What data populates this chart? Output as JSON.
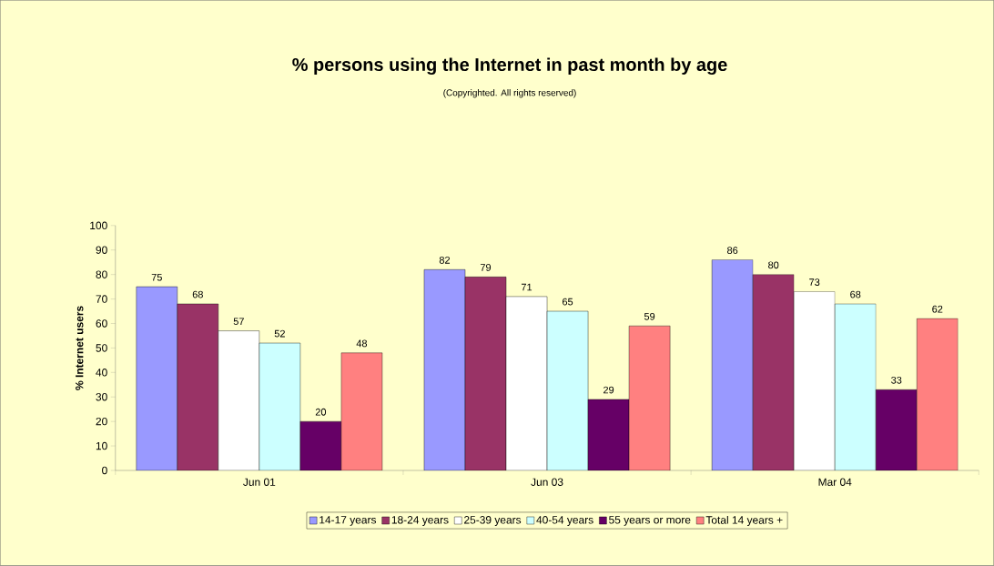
{
  "chart_data": {
    "type": "bar",
    "title": "% persons using the Internet in past month by age",
    "subtitle": "(Copyrighted. All rights reserved)",
    "ylabel": "% Internet users",
    "categories": [
      "Jun 01",
      "Jun 03",
      "Mar 04"
    ],
    "series": [
      {
        "name": "14-17 years",
        "color": "#9999ff",
        "values": [
          75,
          82,
          86
        ]
      },
      {
        "name": "18-24 years",
        "color": "#993366",
        "values": [
          68,
          79,
          80
        ]
      },
      {
        "name": "25-39 years",
        "color": "#ffffff",
        "values": [
          57,
          71,
          73
        ]
      },
      {
        "name": "40-54 years",
        "color": "#ccffff",
        "values": [
          52,
          65,
          68
        ]
      },
      {
        "name": "55 years or more",
        "color": "#660066",
        "values": [
          20,
          29,
          33
        ]
      },
      {
        "name": "Total 14 years +",
        "color": "#ff8080",
        "values": [
          48,
          59,
          62
        ]
      }
    ],
    "ylim": [
      0,
      100
    ],
    "yticks": [
      0,
      10,
      20,
      30,
      40,
      50,
      60,
      70,
      80,
      90,
      100
    ],
    "data_labels": true,
    "legend": "bottom",
    "grid": false
  }
}
